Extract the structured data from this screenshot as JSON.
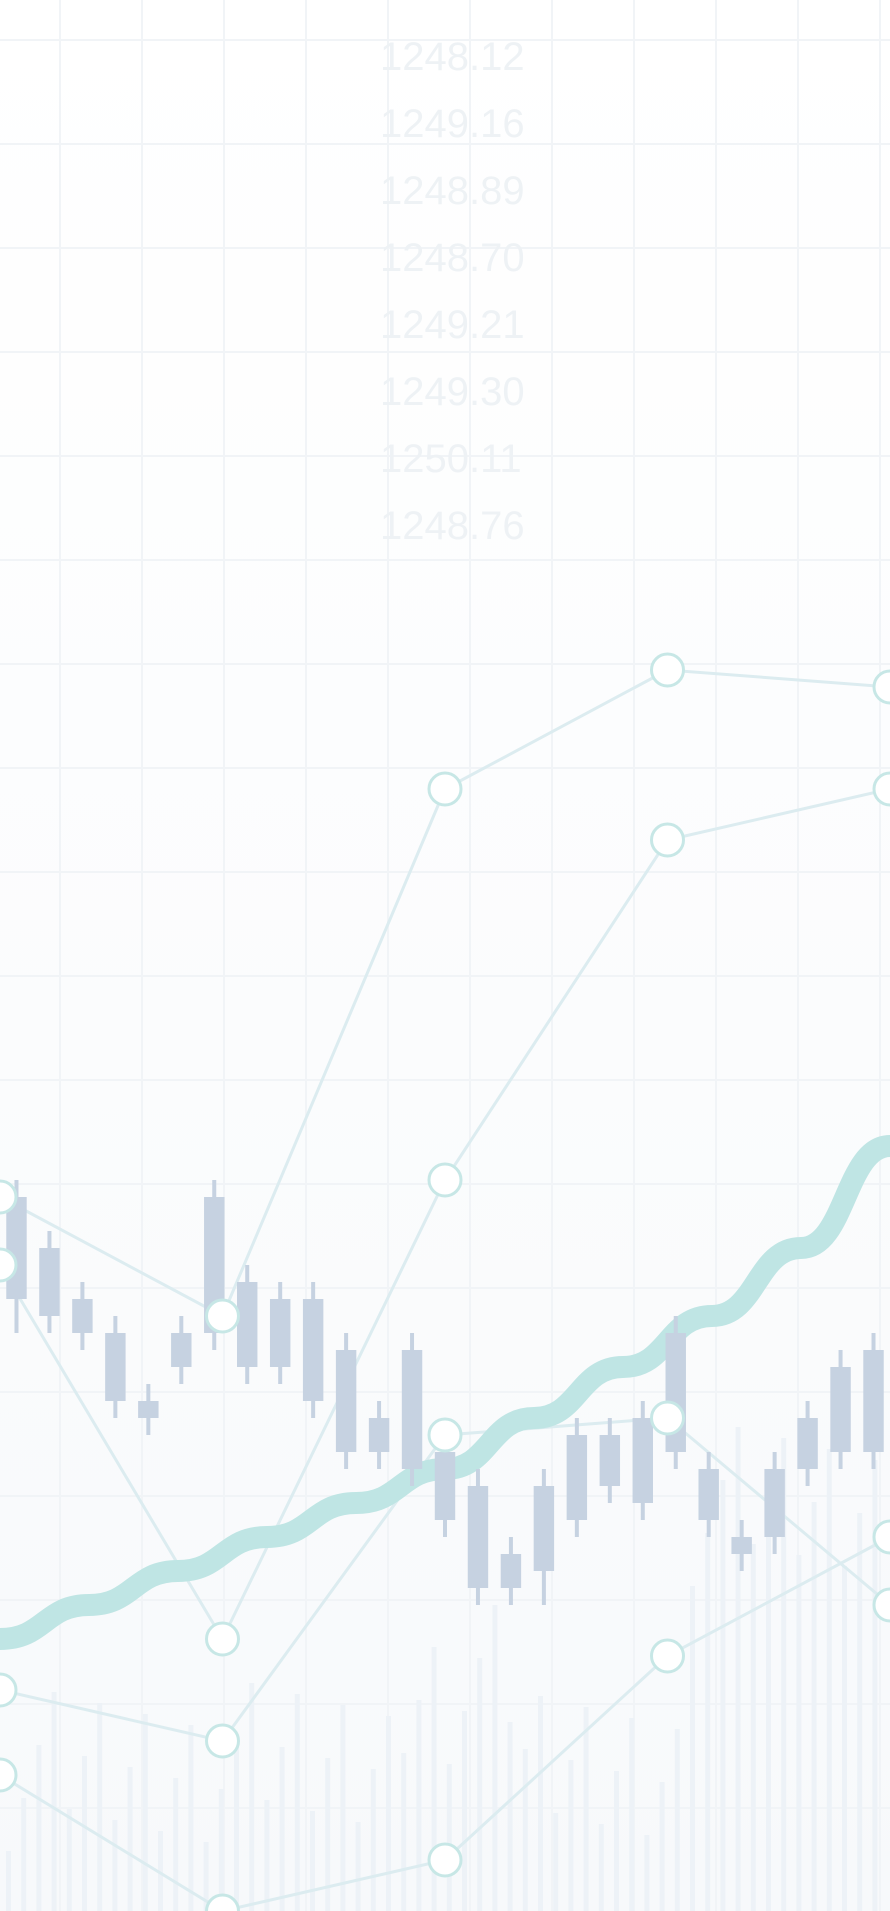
{
  "chart_data": {
    "type": "candlestick",
    "title": "",
    "xlabel": "",
    "ylabel": "",
    "grid": true,
    "legend": "none",
    "ylim": [
      0,
      100
    ],
    "candles": [
      {
        "open": 42,
        "close": 36,
        "high": 43,
        "low": 34
      },
      {
        "open": 39,
        "close": 35,
        "high": 40,
        "low": 34
      },
      {
        "open": 36,
        "close": 34,
        "high": 37,
        "low": 33
      },
      {
        "open": 34,
        "close": 30,
        "high": 35,
        "low": 29
      },
      {
        "open": 30,
        "close": 29,
        "high": 31,
        "low": 28
      },
      {
        "open": 32,
        "close": 34,
        "high": 35,
        "low": 31
      },
      {
        "open": 42,
        "close": 34,
        "high": 43,
        "low": 33
      },
      {
        "open": 37,
        "close": 32,
        "high": 38,
        "low": 31
      },
      {
        "open": 36,
        "close": 32,
        "high": 37,
        "low": 31
      },
      {
        "open": 36,
        "close": 30,
        "high": 37,
        "low": 29
      },
      {
        "open": 33,
        "close": 27,
        "high": 34,
        "low": 26
      },
      {
        "open": 29,
        "close": 27,
        "high": 30,
        "low": 26
      },
      {
        "open": 33,
        "close": 26,
        "high": 34,
        "low": 25
      },
      {
        "open": 27,
        "close": 23,
        "high": 28,
        "low": 22
      },
      {
        "open": 25,
        "close": 19,
        "high": 26,
        "low": 18
      },
      {
        "open": 21,
        "close": 19,
        "high": 22,
        "low": 18
      },
      {
        "open": 25,
        "close": 20,
        "high": 26,
        "low": 18
      },
      {
        "open": 28,
        "close": 23,
        "high": 29,
        "low": 22
      },
      {
        "open": 28,
        "close": 25,
        "high": 29,
        "low": 24
      },
      {
        "open": 29,
        "close": 24,
        "high": 30,
        "low": 23
      },
      {
        "open": 34,
        "close": 27,
        "high": 35,
        "low": 26
      },
      {
        "open": 26,
        "close": 23,
        "high": 27,
        "low": 22
      },
      {
        "open": 22,
        "close": 21,
        "high": 23,
        "low": 20
      },
      {
        "open": 26,
        "close": 22,
        "high": 27,
        "low": 21
      },
      {
        "open": 29,
        "close": 26,
        "high": 30,
        "low": 25
      },
      {
        "open": 32,
        "close": 27,
        "high": 33,
        "low": 26
      },
      {
        "open": 33,
        "close": 27,
        "high": 34,
        "low": 26
      }
    ],
    "trend": [
      16,
      18,
      20,
      22,
      24,
      26,
      29,
      32,
      35,
      39,
      45
    ],
    "lines": [
      {
        "values": [
          13,
          10,
          28,
          29,
          18
        ]
      },
      {
        "values": [
          8,
          0,
          3,
          15,
          22
        ]
      },
      {
        "values": [
          42,
          35,
          66,
          73,
          72
        ]
      },
      {
        "values": [
          38,
          16,
          43,
          63,
          66
        ]
      }
    ],
    "faded_labels": [
      "1248.12",
      "1249.16",
      "1248.89",
      "1248.70",
      "1249.21",
      "1249.30",
      "1250.11",
      "1248.76"
    ],
    "colors": {
      "candle": "#c6d2e1",
      "trend": "#bfe5e4",
      "line": "#dcecf0",
      "marker": "#c7e7e6",
      "grid": "#f1f4f7",
      "volume": "#edf2f7",
      "faded_text": "#eef2f5"
    }
  }
}
